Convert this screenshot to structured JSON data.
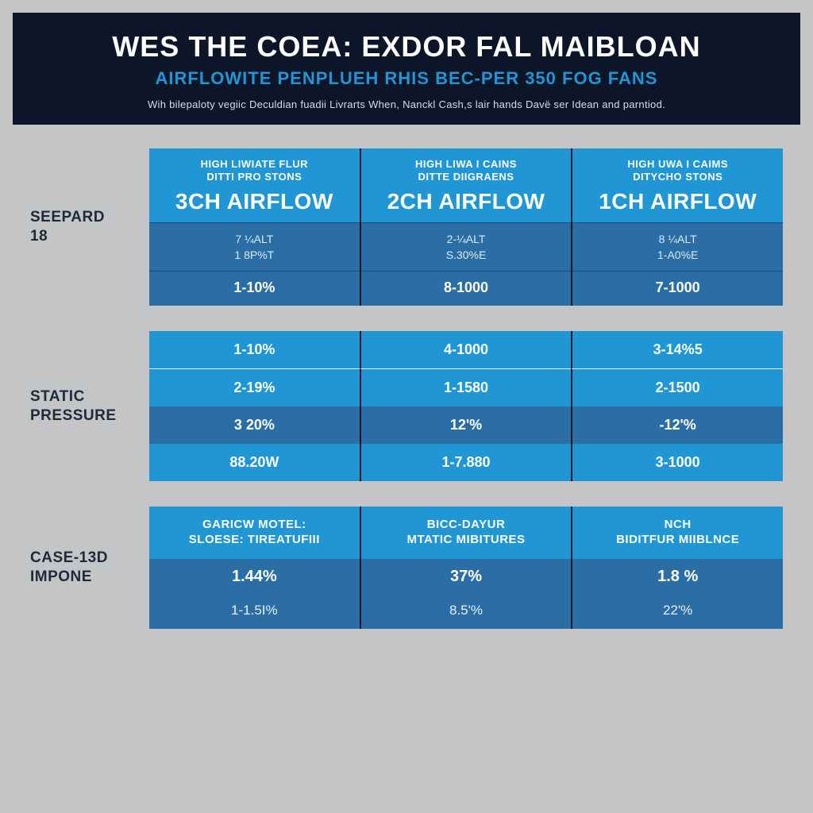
{
  "header": {
    "title": "WES THE COEA: EXDOR FAL MAIBLOAN",
    "subtitle": "AIRFLOWITE PENPLUEH RHIS BEC-PER 350 FOG FANS",
    "tagline": "Wih bilepaloty vegiic Deculdian fuadii Livrarts When, Nanckl Cash,s lair hands Davë ser Idean and parntiod."
  },
  "section1": {
    "label_line1": "SEEPARD",
    "label_line2": "18",
    "cols": [
      {
        "eyebrow_l1": "HIGH LIWIATE FLUR",
        "eyebrow_l2": "DITTI PRO STONS",
        "big": "3CH AIRFLOW",
        "mid_l1": "7 ¼ALT",
        "mid_l2": "1 8P%T",
        "foot": "1-10%"
      },
      {
        "eyebrow_l1": "HIGH LIWA I CAINS",
        "eyebrow_l2": "DITTE DIIGRAENS",
        "big": "2CH AIRFLOW",
        "mid_l1": "2-¼ALT",
        "mid_l2": "S.30%E",
        "foot": "8-1000"
      },
      {
        "eyebrow_l1": "HIGH UWA I CAIMS",
        "eyebrow_l2": "DITYCHO STONS",
        "big": "1CH AIRFLOW",
        "mid_l1": "8 ¼ALT",
        "mid_l2": "1-A0%E",
        "foot": "7-1000"
      }
    ]
  },
  "section2": {
    "label_line1": "STATIC",
    "label_line2": "PRESSURE",
    "rows": [
      [
        "1-10%",
        "4-1000",
        "3-14%5"
      ],
      [
        "2-19%",
        "1-1580",
        "2-1500"
      ],
      [
        "3 20%",
        "12'%",
        "-12'%"
      ],
      [
        "88.20W",
        "1-7.880",
        "3-1000"
      ]
    ]
  },
  "section3": {
    "label_line1": "CASE-13D",
    "label_line2": "IMPONE",
    "cols": [
      {
        "head_l1": "GARICW MOTEL:",
        "head_l2": "SLOESE: TIREATUFIII",
        "v1": "1.44%",
        "v2": "1-1.5I%"
      },
      {
        "head_l1": "BICC-DAYUR",
        "head_l2": "MTATIC MIBITURES",
        "v1": "37%",
        "v2": "8.5'%"
      },
      {
        "head_l1": "NCH",
        "head_l2": "BIDITFUR MIIBLNCE",
        "v1": "1.8 %",
        "v2": "22'%"
      }
    ]
  },
  "colors": {
    "page_bg": "#c3c5c7",
    "header_bg": "#0d1628",
    "title_color": "#ffffff",
    "subtitle_color": "#2196d4",
    "tagline_color": "#d8dde4",
    "blue_light": "#2196d4",
    "blue_dark": "#2b6ea5",
    "divider": "#0d1628",
    "label_color": "#1d2a3a"
  }
}
